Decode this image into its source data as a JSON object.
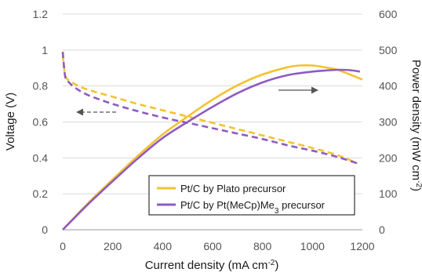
{
  "chart_data": {
    "type": "line",
    "xlabel": "Current density (mA cm",
    "xlabel_sup": "-2",
    "xlabel_tail": ")",
    "ylabel_left": "Voltage  (V)",
    "ylabel_right": "Power density  (mW cm",
    "ylabel_right_sup": "-2",
    "ylabel_right_tail": ")",
    "xlim": [
      0,
      1200
    ],
    "ylim_left": [
      0,
      1.2
    ],
    "ylim_right": [
      0,
      600
    ],
    "x_ticks": [
      0,
      200,
      400,
      600,
      800,
      1000,
      1200
    ],
    "x_tick_labels": [
      "0",
      "200",
      "400",
      "600",
      "800",
      "1000",
      "1200"
    ],
    "y_left_ticks": [
      0,
      0.2,
      0.4,
      0.6,
      0.8,
      1.0,
      1.2
    ],
    "y_left_tick_labels": [
      "0",
      "0.2",
      "0.4",
      "0.6",
      "0.8",
      "1",
      "1.2"
    ],
    "y_right_ticks": [
      0,
      100,
      200,
      300,
      400,
      500,
      600
    ],
    "y_right_tick_labels": [
      "0",
      "100",
      "200",
      "300",
      "400",
      "500",
      "600"
    ],
    "grid": "horizontal",
    "legend_position": "bottom-right",
    "colors": {
      "plato": "#f5c231",
      "mecp": "#8f5bc0"
    },
    "legend": [
      {
        "label": "Pt/C by Plato precursor",
        "color": "#f5c231"
      },
      {
        "label": "Pt/C by Pt(MeCp)Me",
        "sub": "3",
        "tail": " precursor",
        "color": "#8f5bc0"
      }
    ],
    "series": [
      {
        "name": "Pt/C by Plato precursor",
        "kind": "voltage",
        "axis": "left",
        "dashed": true,
        "color": "#f5c231",
        "x": [
          0,
          10,
          25,
          50,
          100,
          200,
          300,
          400,
          500,
          600,
          700,
          800,
          900,
          1000,
          1100,
          1180
        ],
        "y": [
          0.97,
          0.86,
          0.83,
          0.81,
          0.78,
          0.74,
          0.7,
          0.665,
          0.63,
          0.595,
          0.56,
          0.525,
          0.49,
          0.455,
          0.415,
          0.37
        ]
      },
      {
        "name": "Pt/C by Pt(MeCp)Me3 precursor",
        "kind": "voltage",
        "axis": "left",
        "dashed": true,
        "color": "#8f5bc0",
        "x": [
          0,
          10,
          25,
          50,
          100,
          200,
          300,
          400,
          500,
          600,
          700,
          800,
          900,
          1000,
          1100,
          1190
        ],
        "y": [
          0.99,
          0.85,
          0.82,
          0.79,
          0.75,
          0.7,
          0.66,
          0.625,
          0.595,
          0.565,
          0.535,
          0.505,
          0.47,
          0.44,
          0.405,
          0.365
        ]
      },
      {
        "name": "Pt/C by Plato precursor",
        "kind": "power",
        "axis": "right",
        "dashed": false,
        "color": "#f5c231",
        "x": [
          0,
          100,
          200,
          300,
          400,
          500,
          600,
          700,
          800,
          900,
          950,
          1000,
          1050,
          1100,
          1150,
          1200
        ],
        "y": [
          0,
          73,
          140,
          205,
          265,
          315,
          362,
          402,
          432,
          452,
          457,
          457,
          452,
          445,
          432,
          418
        ]
      },
      {
        "name": "Pt/C by Pt(MeCp)Me3 precursor",
        "kind": "power",
        "axis": "right",
        "dashed": false,
        "color": "#8f5bc0",
        "x": [
          0,
          100,
          200,
          300,
          400,
          500,
          600,
          700,
          800,
          900,
          1000,
          1050,
          1100,
          1150,
          1190
        ],
        "y": [
          0,
          70,
          135,
          198,
          255,
          300,
          342,
          380,
          410,
          430,
          440,
          443,
          445,
          444,
          440
        ]
      }
    ],
    "annotations": [
      {
        "kind": "arrow",
        "direction": "left",
        "dashed": true,
        "points_to": "voltage curves (left axis)"
      },
      {
        "kind": "arrow",
        "direction": "right",
        "dashed": false,
        "points_to": "power density curves (right axis)"
      }
    ]
  }
}
